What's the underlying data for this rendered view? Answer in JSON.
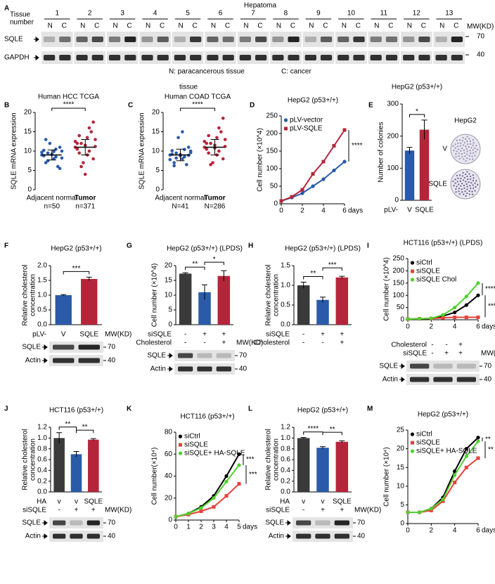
{
  "panels": [
    {
      "letter": "A",
      "type": "blot-panel",
      "title": "Hepatoma",
      "row_label": [
        "Tissue",
        "number"
      ],
      "tissues": [
        "1",
        "2",
        "3",
        "4",
        "5",
        "6",
        "7",
        "8",
        "9",
        "10",
        "11",
        "12",
        "13"
      ],
      "lanes": [
        "N",
        "C"
      ],
      "mw_label": "MW(KD)",
      "blots": [
        {
          "name": "SQLE",
          "mw": "70"
        },
        {
          "name": "GAPDH",
          "mw": "40"
        }
      ],
      "legend": [
        "N: paracancerous tissue",
        "C: cancer"
      ],
      "note": "tissue"
    },
    {
      "letter": "B",
      "type": "scatter",
      "title": "Human HCC TCGA",
      "ylabel": [
        "SQLE mRNA expression"
      ],
      "ylim": [
        0,
        20
      ],
      "yticks": [
        0,
        5,
        10,
        15,
        20
      ],
      "significance": [
        "****"
      ],
      "groups": [
        {
          "name": "Adjacent normal",
          "n": "n=50",
          "color": "#2a5aa8",
          "mean": 9,
          "sd": 1.3,
          "values": [
            9,
            8.5,
            9.5,
            10,
            8,
            7,
            11,
            9.2,
            8.8,
            6,
            12,
            9.7,
            10.5,
            7.5,
            8.2,
            9.9,
            13,
            5.5,
            9.1,
            10.2
          ]
        },
        {
          "name": "Tumor",
          "n": "n=371",
          "color": "#b5253a",
          "mean": 11,
          "sd": 2,
          "values": [
            11,
            10,
            12,
            13,
            9,
            14,
            8,
            11.5,
            10.5,
            15,
            7,
            12.5,
            16,
            6,
            11.2,
            13.5,
            9.5,
            17.5,
            4,
            12
          ]
        }
      ]
    },
    {
      "letter": "C",
      "type": "scatter",
      "title": "Human COAD TCGA",
      "ylabel": [
        "SQLE mRNA expression"
      ],
      "ylim": [
        0,
        20
      ],
      "yticks": [
        0,
        5,
        10,
        15,
        20
      ],
      "significance": [
        "****"
      ],
      "groups": [
        {
          "name": "Adjacent normal",
          "n": "N=41",
          "color": "#2a5aa8",
          "mean": 9,
          "sd": 1.5,
          "values": [
            9,
            8.5,
            9.5,
            10,
            8,
            7,
            11,
            8.8,
            9.2,
            6.5,
            13.5,
            7.8,
            10.4,
            8.2,
            9.6,
            15,
            6.2,
            8.9,
            9.1,
            10.1
          ]
        },
        {
          "name": "Tumor",
          "n": "N=286",
          "color": "#b5253a",
          "mean": 11,
          "sd": 2,
          "values": [
            11,
            10,
            12,
            13,
            9,
            14,
            8,
            11.5,
            10.5,
            15,
            7,
            12.5,
            16,
            6.5,
            11.2,
            13.5,
            9.5,
            18.5,
            10.8,
            12
          ]
        }
      ]
    },
    {
      "letter": "D",
      "type": "line",
      "title": "HepG2 (p53+/+)",
      "ylabel": [
        "Cell number (×10^4)"
      ],
      "xlabel": "days",
      "ylim": [
        0,
        250
      ],
      "yticks": [
        0,
        50,
        100,
        150,
        200,
        250
      ],
      "xlim": [
        0,
        6
      ],
      "xticks": [
        0,
        2,
        4,
        6
      ],
      "x": [
        0,
        1,
        2,
        3,
        4,
        5,
        6
      ],
      "significance": [
        "****"
      ],
      "series": [
        {
          "name": "pLV-vector",
          "color": "#2a5aa8",
          "values": [
            8,
            18,
            30,
            50,
            70,
            95,
            120
          ]
        },
        {
          "name": "pLV-SQLE",
          "color": "#b5253a",
          "values": [
            8,
            20,
            40,
            85,
            120,
            165,
            210
          ]
        }
      ]
    },
    {
      "letter": "E",
      "type": "bar",
      "title": "HepG2 (p53+/+)",
      "ylabel": [
        "Number of colonies"
      ],
      "ylim": [
        0,
        300
      ],
      "yticks": [
        0,
        100,
        200,
        300
      ],
      "values": [
        155,
        220
      ],
      "errors": [
        10,
        30
      ],
      "colors": [
        "#2a5aa8",
        "#b5253a"
      ],
      "significance": [
        "*"
      ],
      "rows": [
        {
          "label": "pLV-",
          "values": [
            "V",
            "SQLE"
          ]
        }
      ],
      "image_title": "HepG2",
      "image_labels": [
        "V",
        "SQLE"
      ]
    },
    {
      "letter": "F",
      "type": "bar",
      "title": "HepG2 (p53+/+)",
      "ylabel": [
        "Relative cholesterol",
        "concentration"
      ],
      "ylim": [
        0,
        2
      ],
      "yticks": [
        {
          "value": 0,
          "label": "0.0"
        },
        0.5,
        {
          "value": 1,
          "label": "1.0"
        },
        1.5,
        {
          "value": 2,
          "label": "2.0"
        }
      ],
      "values": [
        1.0,
        1.55
      ],
      "errors": [
        0.02,
        0.06
      ],
      "colors": [
        "#2a5aa8",
        "#b5253a"
      ],
      "significance": [
        "***"
      ],
      "rows": [
        {
          "label": "pLV-",
          "values": [
            "V",
            "SQLE"
          ]
        }
      ],
      "mw_label": "MW(KD)",
      "blots": [
        {
          "name": "SQLE",
          "mw": "70"
        },
        {
          "name": "Actin",
          "mw": "40"
        }
      ]
    },
    {
      "letter": "G",
      "type": "bar",
      "title": "HepG2 (p53+/+) (LPDS)",
      "ylabel": [
        "Cell number (×10^4)"
      ],
      "ylim": [
        0,
        20
      ],
      "yticks": [
        0,
        5,
        10,
        15,
        20
      ],
      "values": [
        17.3,
        11,
        16.5
      ],
      "errors": [
        0.3,
        2.5,
        1.8
      ],
      "colors": [
        "#3a3a3a",
        "#2a5aa8",
        "#b5253a"
      ],
      "significance": [
        "**",
        "*"
      ],
      "rows": [
        {
          "label": "siSQLE",
          "values": [
            "-",
            "+",
            "+"
          ]
        },
        {
          "label": "Cholesterol",
          "values": [
            "-",
            "-",
            "+"
          ]
        }
      ],
      "mw_label": "MW(KD)",
      "blots": [
        {
          "name": "SQLE",
          "mw": "70"
        },
        {
          "name": "Actin",
          "mw": "40"
        }
      ]
    },
    {
      "letter": "H",
      "type": "bar",
      "title": "HepG2 (p53+/+) (LPDS)",
      "ylabel": [
        "Relative cholesterol",
        "concentration"
      ],
      "ylim": [
        0,
        1.5
      ],
      "yticks": [
        {
          "value": 0,
          "label": "0.0"
        },
        0.5,
        {
          "value": 1,
          "label": "1.0"
        },
        1.5
      ],
      "values": [
        1.0,
        0.63,
        1.2
      ],
      "errors": [
        0.08,
        0.07,
        0.03
      ],
      "colors": [
        "#3a3a3a",
        "#2a5aa8",
        "#b5253a"
      ],
      "significance": [
        "**",
        "***"
      ],
      "rows": [
        {
          "label": "siSQLE",
          "values": [
            "-",
            "+",
            "+"
          ]
        },
        {
          "label": "Cholesterol",
          "values": [
            "-",
            "-",
            "+"
          ]
        }
      ]
    },
    {
      "letter": "I",
      "type": "line",
      "title": "HCT116 (p53+/+) (LPDS)",
      "ylabel": [
        "Cell number (×10^4)"
      ],
      "xlabel": "days",
      "ylim": [
        0,
        250
      ],
      "yticks": [
        0,
        50,
        100,
        150,
        200,
        250
      ],
      "xlim": [
        0,
        6
      ],
      "xticks": [
        0,
        2,
        4,
        6
      ],
      "x": [
        0,
        1,
        2,
        3,
        4,
        5,
        6
      ],
      "significance": [
        "****",
        "****"
      ],
      "series": [
        {
          "name": "siCtrl",
          "color": "#000000",
          "values": [
            3,
            4,
            5,
            15,
            30,
            60,
            100
          ]
        },
        {
          "name": "siSQLE",
          "color": "#e8403a",
          "values": [
            3,
            4,
            5,
            8,
            10,
            10,
            10
          ]
        },
        {
          "name": "siSQLE Chol",
          "color": "#4fd12e",
          "values": [
            3,
            4,
            6,
            20,
            50,
            95,
            150
          ]
        }
      ],
      "rows": [
        {
          "label": "Cholesterol",
          "values": [
            "-",
            "-",
            "+"
          ]
        },
        {
          "label": "siSQLE",
          "values": [
            "-",
            "+",
            "+"
          ]
        }
      ],
      "mw_label": "MW(KD)",
      "blots": [
        {
          "name": "SQLE",
          "mw": "70"
        },
        {
          "name": "Actin",
          "mw": "40"
        }
      ]
    },
    {
      "letter": "J",
      "type": "bar",
      "title": "HCT116 (p53+/+)",
      "ylabel": [
        "Relative cholesterol",
        "concentration"
      ],
      "ylim": [
        0,
        1.2
      ],
      "yticks": [
        {
          "value": 0,
          "label": "0.0"
        },
        0.2,
        0.4,
        0.6,
        0.8,
        {
          "value": 1,
          "label": "1.0"
        },
        1.2
      ],
      "values": [
        1.0,
        0.7,
        0.97
      ],
      "errors": [
        0.1,
        0.05,
        0.02
      ],
      "colors": [
        "#3a3a3a",
        "#2a5aa8",
        "#b5253a"
      ],
      "significance": [
        "**",
        "**"
      ],
      "rows": [
        {
          "label": "HA",
          "values": [
            "v",
            "v",
            "SQLE"
          ]
        },
        {
          "label": "siSQLE",
          "values": [
            "-",
            "+",
            "+"
          ]
        }
      ],
      "mw_label": "MW(KD)",
      "blots": [
        {
          "name": "SQLE",
          "mw": "70"
        },
        {
          "name": "Actin",
          "mw": "40"
        }
      ]
    },
    {
      "letter": "K",
      "type": "line",
      "title": "HCT116 (p53+/+)",
      "ylabel": [
        "Cell number(×10⁴)"
      ],
      "xlabel": "days",
      "ylim": [
        0,
        80
      ],
      "yticks": [
        0,
        20,
        40,
        60,
        80
      ],
      "xlim": [
        0,
        5
      ],
      "xticks": [
        0,
        1,
        2,
        3,
        4,
        5
      ],
      "x": [
        0,
        1,
        2,
        3,
        4,
        5
      ],
      "significance": [
        "***",
        "***"
      ],
      "series": [
        {
          "name": "siCtrl",
          "color": "#000000",
          "values": [
            3,
            6,
            12,
            22,
            40,
            60
          ]
        },
        {
          "name": "siSQLE",
          "color": "#e8403a",
          "values": [
            3,
            5,
            8,
            12,
            22,
            33
          ]
        },
        {
          "name": "siSQLE+ HA-SQLE",
          "color": "#4fd12e",
          "values": [
            3,
            6,
            11,
            20,
            35,
            50
          ]
        }
      ]
    },
    {
      "letter": "L",
      "type": "bar",
      "title": "HepG2 (p53+/+)",
      "ylabel": [
        "Relative cholesterol",
        "concentration"
      ],
      "ylim": [
        0,
        1.2
      ],
      "yticks": [
        {
          "value": 0,
          "label": "0.0"
        },
        0.2,
        0.4,
        0.6,
        0.8,
        {
          "value": 1,
          "label": "1.0"
        },
        1.2
      ],
      "values": [
        1.0,
        0.82,
        0.93
      ],
      "errors": [
        0.01,
        0.02,
        0.02
      ],
      "colors": [
        "#3a3a3a",
        "#2a5aa8",
        "#b5253a"
      ],
      "significance": [
        "****",
        "**"
      ],
      "rows": [
        {
          "label": "HA",
          "values": [
            "v",
            "v",
            "SQLE"
          ]
        },
        {
          "label": "siSQLE",
          "values": [
            "-",
            "+",
            "+"
          ]
        }
      ],
      "mw_label": "MW(KD)",
      "blots": [
        {
          "name": "SQLE",
          "mw": "70"
        },
        {
          "name": "Actin",
          "mw": "40"
        }
      ]
    },
    {
      "letter": "M",
      "type": "line",
      "title": "HepG2 (p53+/+)",
      "ylabel": [
        "Cell number (×10⁴)"
      ],
      "xlabel": "days",
      "ylim": [
        0,
        25
      ],
      "yticks": [
        0,
        5,
        10,
        15,
        20,
        25
      ],
      "xlim": [
        0,
        6
      ],
      "xticks": [
        0,
        2,
        4,
        6
      ],
      "x": [
        0,
        1,
        2,
        3,
        4,
        5,
        6
      ],
      "significance": [
        "**",
        "**"
      ],
      "series": [
        {
          "name": "siCtrl",
          "color": "#000000",
          "values": [
            3,
            3,
            4,
            7,
            14,
            20,
            23
          ]
        },
        {
          "name": "siSQLE",
          "color": "#e8403a",
          "values": [
            3,
            3,
            3.5,
            6,
            11,
            15,
            17.5
          ]
        },
        {
          "name": "siSQLE+ HA-SQLE",
          "color": "#4fd12e",
          "values": [
            3,
            3,
            4,
            6.5,
            13,
            18,
            22
          ]
        }
      ]
    }
  ]
}
